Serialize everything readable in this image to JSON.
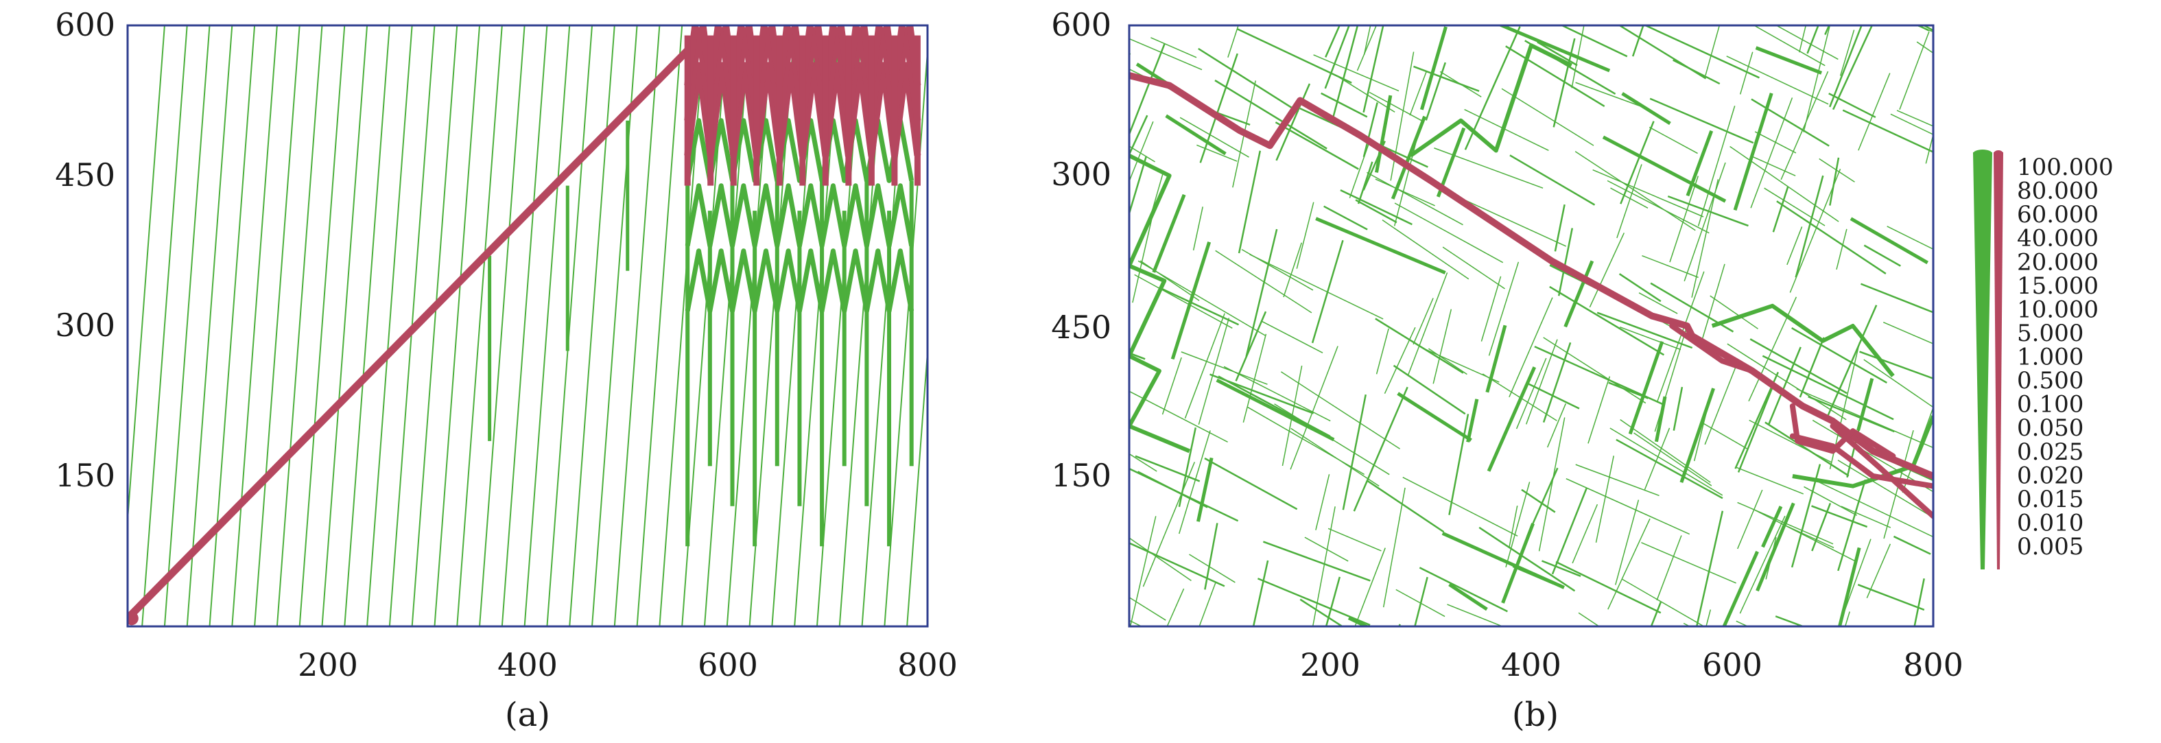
{
  "panels": [
    {
      "id": "a",
      "caption": "(a)",
      "xlim": [
        0,
        800
      ],
      "ylim": [
        0,
        600
      ],
      "xticks": [
        "200",
        "400",
        "600",
        "800"
      ],
      "yticks": [
        "150",
        "300",
        "450",
        "600"
      ]
    },
    {
      "id": "b",
      "caption": "(b)",
      "xlim": [
        0,
        800
      ],
      "ylim": [
        0,
        600
      ],
      "xticks": [
        "200",
        "400",
        "600",
        "800"
      ],
      "yticks": [
        "150",
        "300",
        "450",
        "600"
      ]
    }
  ],
  "legend": {
    "labels": [
      "100.000",
      "80.000",
      "60.000",
      "40.000",
      "20.000",
      "15.000",
      "10.000",
      "5.000",
      "1.000",
      "0.500",
      "0.100",
      "0.050",
      "0.025",
      "0.020",
      "0.015",
      "0.010",
      "0.005"
    ]
  },
  "colors": {
    "fracture_green": "#4caf3c",
    "flow_red": "#b5475f",
    "axis": "#2f3e8f",
    "text": "#1a1a1a"
  }
}
